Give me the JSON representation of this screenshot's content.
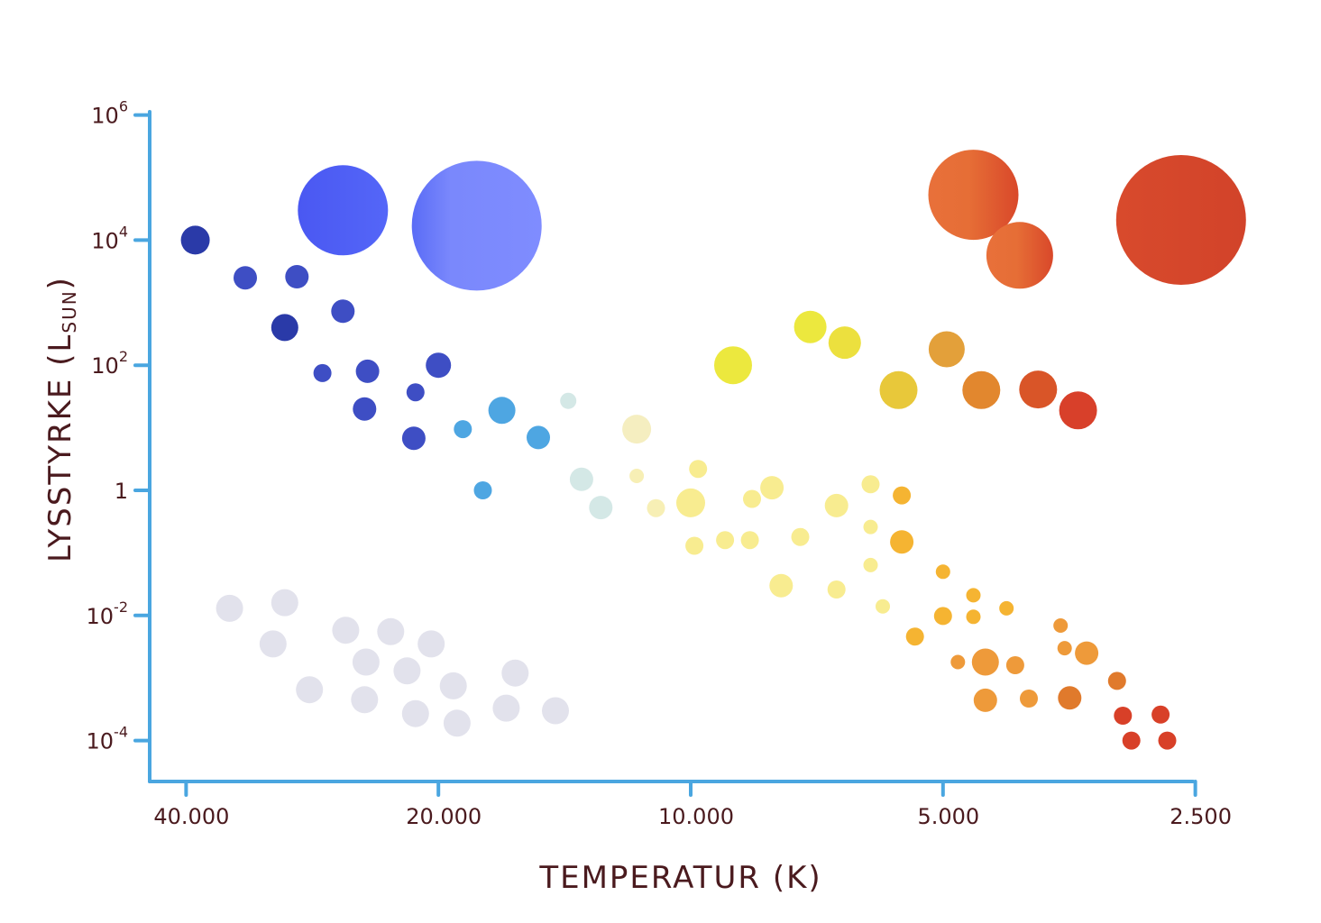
{
  "chart_data": {
    "type": "scatter",
    "title": "",
    "xlabel": "TEMPERATUR (K)",
    "ylabel": "LYSSTYRKE (L",
    "ylabel_sub": "SUN",
    "ylabel_close": ")",
    "x_scale": "log-reversed",
    "y_scale": "log",
    "xlim": [
      42000,
      2500
    ],
    "ylim": [
      2.5e-05,
      1000000
    ],
    "grid": false,
    "axis_color": "#4aa6e0",
    "x_ticks": [
      {
        "value": 40000,
        "label": "40.000"
      },
      {
        "value": 20000,
        "label": "20.000"
      },
      {
        "value": 10000,
        "label": "10.000"
      },
      {
        "value": 5000,
        "label": "5.000"
      },
      {
        "value": 2500,
        "label": "2.500"
      }
    ],
    "y_ticks": [
      {
        "value": 1000000,
        "base": "10",
        "exp": "6"
      },
      {
        "value": 10000,
        "base": "10",
        "exp": "4"
      },
      {
        "value": 100,
        "base": "10",
        "exp": "2"
      },
      {
        "value": 1,
        "base": "1",
        "exp": ""
      },
      {
        "value": 0.01,
        "base": "10",
        "exp": "-2"
      },
      {
        "value": 0.0001,
        "base": "10",
        "exp": "-4"
      }
    ],
    "points": [
      {
        "t": 39000,
        "l": 10000,
        "r": 16,
        "c": "#2a3aa8"
      },
      {
        "t": 34000,
        "l": 2500,
        "r": 13,
        "c": "#3e4ec4"
      },
      {
        "t": 29500,
        "l": 2600,
        "r": 13,
        "c": "#3e4ec4"
      },
      {
        "t": 26000,
        "l": 730,
        "r": 13,
        "c": "#3e4ec4"
      },
      {
        "t": 30500,
        "l": 400,
        "r": 15,
        "c": "#2a3aa8"
      },
      {
        "t": 27500,
        "l": 75,
        "r": 10,
        "c": "#3e4ec4"
      },
      {
        "t": 24300,
        "l": 80,
        "r": 13,
        "c": "#3e4ec4"
      },
      {
        "t": 24500,
        "l": 20,
        "r": 13,
        "c": "#3e4ec4"
      },
      {
        "t": 21300,
        "l": 37,
        "r": 10,
        "c": "#3e4ec4"
      },
      {
        "t": 21400,
        "l": 6.8,
        "r": 13,
        "c": "#3e4ec4"
      },
      {
        "t": 20000,
        "l": 100,
        "r": 14,
        "c": "#3e4ec4"
      },
      {
        "t": 18700,
        "l": 9.5,
        "r": 10,
        "c": "#4ea6e2"
      },
      {
        "t": 17700,
        "l": 1,
        "r": 10,
        "c": "#4ea6e2"
      },
      {
        "t": 16800,
        "l": 19,
        "r": 15,
        "c": "#4ea6e2"
      },
      {
        "t": 15200,
        "l": 7.0,
        "r": 13,
        "c": "#4ea6e2"
      },
      {
        "t": 14000,
        "l": 27,
        "r": 9,
        "c": "#d4e8e6"
      },
      {
        "t": 13500,
        "l": 1.5,
        "r": 13,
        "c": "#d4e8e6"
      },
      {
        "t": 12800,
        "l": 0.53,
        "r": 13,
        "c": "#d4e8e6"
      },
      {
        "t": 11600,
        "l": 9.5,
        "r": 16,
        "c": "#f5eec0"
      },
      {
        "t": 11600,
        "l": 1.7,
        "r": 8,
        "c": "#f7efb5"
      },
      {
        "t": 11000,
        "l": 0.52,
        "r": 10,
        "c": "#f7efb5"
      },
      {
        "t": 9800,
        "l": 2.2,
        "r": 10,
        "c": "#f8ec90"
      },
      {
        "t": 10000,
        "l": 0.63,
        "r": 16,
        "c": "#f8ec90"
      },
      {
        "t": 9900,
        "l": 0.13,
        "r": 10,
        "c": "#f8ec90"
      },
      {
        "t": 9100,
        "l": 0.16,
        "r": 10,
        "c": "#f8ec90"
      },
      {
        "t": 8450,
        "l": 0.73,
        "r": 10,
        "c": "#f8ec90"
      },
      {
        "t": 8000,
        "l": 1.1,
        "r": 13,
        "c": "#f8ec90"
      },
      {
        "t": 8500,
        "l": 0.16,
        "r": 10,
        "c": "#f8ec90"
      },
      {
        "t": 7800,
        "l": 0.03,
        "r": 13,
        "c": "#f8ec90"
      },
      {
        "t": 7400,
        "l": 0.18,
        "r": 10,
        "c": "#f8ec90"
      },
      {
        "t": 6700,
        "l": 0.57,
        "r": 13,
        "c": "#f8ec90"
      },
      {
        "t": 6700,
        "l": 0.026,
        "r": 10,
        "c": "#f8ec90"
      },
      {
        "t": 6100,
        "l": 1.25,
        "r": 10,
        "c": "#f8ec90"
      },
      {
        "t": 6100,
        "l": 0.26,
        "r": 8,
        "c": "#f8ec90"
      },
      {
        "t": 6100,
        "l": 0.064,
        "r": 8,
        "c": "#f8ec90"
      },
      {
        "t": 5900,
        "l": 0.014,
        "r": 8,
        "c": "#f8ec90"
      },
      {
        "t": 5600,
        "l": 0.83,
        "r": 10,
        "c": "#f5b432"
      },
      {
        "t": 5600,
        "l": 0.15,
        "r": 13,
        "c": "#f5b432"
      },
      {
        "t": 5400,
        "l": 0.0046,
        "r": 10,
        "c": "#f5b432"
      },
      {
        "t": 5000,
        "l": 0.05,
        "r": 8,
        "c": "#f5b432"
      },
      {
        "t": 5000,
        "l": 0.0098,
        "r": 10,
        "c": "#f5b432"
      },
      {
        "t": 4800,
        "l": 0.0018,
        "r": 8,
        "c": "#ee9a3a"
      },
      {
        "t": 4600,
        "l": 0.021,
        "r": 8,
        "c": "#f5b432"
      },
      {
        "t": 4600,
        "l": 0.0095,
        "r": 8,
        "c": "#f5b432"
      },
      {
        "t": 4450,
        "l": 0.0018,
        "r": 15,
        "c": "#ee9a3a"
      },
      {
        "t": 4450,
        "l": 0.00044,
        "r": 13,
        "c": "#ee9a3a"
      },
      {
        "t": 4200,
        "l": 0.013,
        "r": 8,
        "c": "#f5b432"
      },
      {
        "t": 4100,
        "l": 0.0016,
        "r": 10,
        "c": "#ee9a3a"
      },
      {
        "t": 3950,
        "l": 0.00047,
        "r": 10,
        "c": "#ee9a3a"
      },
      {
        "t": 3620,
        "l": 0.0069,
        "r": 8,
        "c": "#ee9a3a"
      },
      {
        "t": 3580,
        "l": 0.003,
        "r": 8,
        "c": "#ee9a3a"
      },
      {
        "t": 3370,
        "l": 0.0025,
        "r": 13,
        "c": "#ee9a3a"
      },
      {
        "t": 3530,
        "l": 0.00048,
        "r": 13,
        "c": "#e07a2c"
      },
      {
        "t": 3100,
        "l": 0.0009,
        "r": 10,
        "c": "#e07a2c"
      },
      {
        "t": 3050,
        "l": 0.00025,
        "r": 10,
        "c": "#d84028"
      },
      {
        "t": 2750,
        "l": 0.00026,
        "r": 10,
        "c": "#d84028"
      },
      {
        "t": 2980,
        "l": 0.0001,
        "r": 10,
        "c": "#d84028"
      },
      {
        "t": 2700,
        "l": 0.0001,
        "r": 10,
        "c": "#d84028"
      },
      {
        "t": 8900,
        "l": 100,
        "r": 21,
        "c": "#ece83e"
      },
      {
        "t": 7200,
        "l": 410,
        "r": 18,
        "c": "#ece83e"
      },
      {
        "t": 6550,
        "l": 230,
        "r": 18,
        "c": "#ece03e"
      },
      {
        "t": 5650,
        "l": 40,
        "r": 21,
        "c": "#e8c83a"
      },
      {
        "t": 4950,
        "l": 180,
        "r": 20,
        "c": "#e3a03a"
      },
      {
        "t": 4500,
        "l": 40,
        "r": 21,
        "c": "#e2872e"
      },
      {
        "t": 3850,
        "l": 41,
        "r": 21,
        "c": "#d95528"
      },
      {
        "t": 3450,
        "l": 19,
        "r": 21,
        "c": "#d8402a"
      },
      {
        "t": 35500,
        "l": 0.013,
        "r": 15,
        "c": "#e2e2ec"
      },
      {
        "t": 31500,
        "l": 0.0035,
        "r": 15,
        "c": "#e2e2ec"
      },
      {
        "t": 30500,
        "l": 0.016,
        "r": 15,
        "c": "#e2e2ec"
      },
      {
        "t": 28500,
        "l": 0.00065,
        "r": 15,
        "c": "#e2e2ec"
      },
      {
        "t": 25800,
        "l": 0.0058,
        "r": 15,
        "c": "#e2e2ec"
      },
      {
        "t": 24400,
        "l": 0.0018,
        "r": 15,
        "c": "#e2e2ec"
      },
      {
        "t": 24500,
        "l": 0.00045,
        "r": 15,
        "c": "#e2e2ec"
      },
      {
        "t": 22800,
        "l": 0.0055,
        "r": 15,
        "c": "#e2e2ec"
      },
      {
        "t": 21800,
        "l": 0.0013,
        "r": 15,
        "c": "#e2e2ec"
      },
      {
        "t": 20400,
        "l": 0.0035,
        "r": 15,
        "c": "#e2e2ec"
      },
      {
        "t": 21300,
        "l": 0.00027,
        "r": 15,
        "c": "#e2e2ec"
      },
      {
        "t": 19200,
        "l": 0.00075,
        "r": 15,
        "c": "#e2e2ec"
      },
      {
        "t": 19000,
        "l": 0.00019,
        "r": 15,
        "c": "#e2e2ec"
      },
      {
        "t": 16600,
        "l": 0.00033,
        "r": 15,
        "c": "#e2e2ec"
      },
      {
        "t": 16200,
        "l": 0.0012,
        "r": 15,
        "c": "#e2e2ec"
      },
      {
        "t": 14500,
        "l": 0.0003,
        "r": 15,
        "c": "#e2e2ec"
      },
      {
        "t": 26000,
        "l": 30000,
        "r": 50,
        "g": "blue"
      },
      {
        "t": 18000,
        "l": 17000,
        "r": 72,
        "g": "lightblue"
      },
      {
        "t": 4600,
        "l": 53000,
        "r": 50,
        "g": "orange"
      },
      {
        "t": 4050,
        "l": 5700,
        "r": 37,
        "g": "orange"
      },
      {
        "t": 2600,
        "l": 21000,
        "r": 72,
        "g": "red"
      }
    ]
  }
}
